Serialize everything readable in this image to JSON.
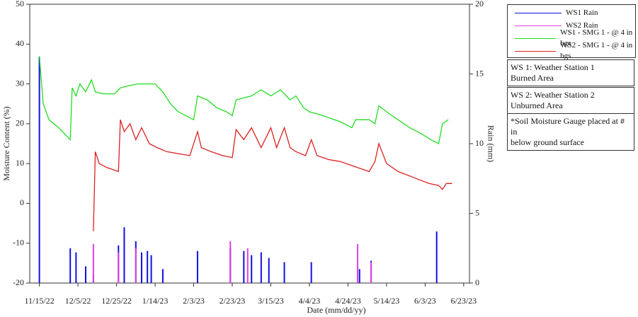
{
  "chart_data": {
    "type": "line",
    "x_label": "Date (mm/dd/yy)",
    "y_label": "Moisture Content (%)",
    "y2_label": "Rain (mm)",
    "xlim": [
      "11/10/22",
      "6/26/23"
    ],
    "xticks": [
      "11/15/22",
      "12/5/22",
      "12/25/22",
      "1/14/23",
      "2/3/23",
      "2/23/23",
      "3/15/23",
      "4/4/23",
      "4/24/23",
      "5/14/23",
      "6/3/23",
      "6/23/23"
    ],
    "ylim": [
      -20,
      50
    ],
    "yticks": [
      -20,
      -10,
      0,
      10,
      20,
      30,
      40,
      50
    ],
    "y2lim": [
      0,
      20
    ],
    "y2ticks": [
      0,
      5,
      10,
      15,
      20
    ],
    "series": [
      {
        "name": "WS1 Rain",
        "color": "#1010e0",
        "axis": "y2",
        "kind": "bar",
        "x": [
          "11/15/22",
          "12/1/22",
          "12/4/22",
          "12/9/22",
          "12/13/22",
          "12/26/22",
          "12/29/22",
          "1/4/23",
          "1/7/23",
          "1/10/23",
          "1/12/23",
          "1/18/23",
          "2/5/23",
          "2/22/23",
          "3/1/23",
          "3/5/23",
          "3/10/23",
          "3/14/23",
          "3/22/23",
          "4/5/23",
          "4/30/23",
          "5/6/23",
          "6/9/23"
        ],
        "values": [
          16.2,
          2.5,
          2.2,
          1.2,
          0.6,
          2.7,
          4,
          3,
          2.2,
          2.3,
          2,
          1,
          2.3,
          2.5,
          2.3,
          2,
          2.2,
          1.8,
          1.5,
          1.5,
          1,
          1.6,
          3.7
        ]
      },
      {
        "name": "WS2 Rain",
        "color": "#e040e0",
        "axis": "y2",
        "kind": "bar",
        "x": [
          "12/13/22",
          "12/26/22",
          "1/4/23",
          "2/22/23",
          "3/3/23",
          "4/29/23",
          "5/6/23"
        ],
        "values": [
          2.8,
          2.2,
          2.5,
          3,
          2.5,
          2.8,
          1.5
        ]
      },
      {
        "name": "WS1 - SMG 1 - @ 4 in bgs",
        "color": "#22dd22",
        "kind": "line",
        "x": [
          "11/15/22",
          "11/17/22",
          "11/20/22",
          "11/25/22",
          "11/30/22",
          "12/1/22",
          "12/2/22",
          "12/4/22",
          "12/6/22",
          "12/9/22",
          "12/12/22",
          "12/14/22",
          "12/18/22",
          "12/24/22",
          "12/27/22",
          "12/31/22",
          "1/5/23",
          "1/10/23",
          "1/14/23",
          "1/18/23",
          "1/22/23",
          "1/26/23",
          "1/30/23",
          "2/3/23",
          "2/5/23",
          "2/10/23",
          "2/15/23",
          "2/20/23",
          "2/23/23",
          "2/25/23",
          "3/1/23",
          "3/5/23",
          "3/10/23",
          "3/15/23",
          "3/20/23",
          "3/25/23",
          "3/28/23",
          "4/1/23",
          "4/4/23",
          "4/8/23",
          "4/14/23",
          "4/20/23",
          "4/26/23",
          "4/28/23",
          "5/5/23",
          "5/8/23",
          "5/10/23",
          "5/14/23",
          "5/20/23",
          "5/26/23",
          "6/1/23",
          "6/6/23",
          "6/10/23",
          "6/12/23",
          "6/15/23"
        ],
        "values": [
          37,
          25,
          21,
          19,
          16.5,
          16,
          29,
          27,
          30,
          28,
          31,
          28,
          27.5,
          27.5,
          29,
          29.5,
          30,
          30,
          30,
          28,
          25,
          23,
          22,
          21,
          27,
          26,
          24,
          23,
          22,
          26,
          26.5,
          27,
          28.5,
          27,
          28.5,
          26,
          27,
          24,
          23,
          22.5,
          21.5,
          20.5,
          19,
          21,
          21,
          20,
          24.5,
          23,
          21,
          19,
          17.5,
          16,
          15,
          20,
          21
        ]
      },
      {
        "name": "WS2 - SMG 1 - @ 4 in bgs",
        "color": "#dd2020",
        "kind": "line",
        "x": [
          "12/13/22",
          "12/14/22",
          "12/16/22",
          "12/20/22",
          "12/26/22",
          "12/27/22",
          "12/29/22",
          "1/1/23",
          "1/4/23",
          "1/7/23",
          "1/11/23",
          "1/15/23",
          "1/20/23",
          "1/26/23",
          "2/1/23",
          "2/5/23",
          "2/7/23",
          "2/12/23",
          "2/18/23",
          "2/23/23",
          "2/25/23",
          "3/1/23",
          "3/5/23",
          "3/10/23",
          "3/15/23",
          "3/18/23",
          "3/22/23",
          "3/25/23",
          "3/28/23",
          "4/2/23",
          "4/5/23",
          "4/8/23",
          "4/14/23",
          "4/20/23",
          "4/26/23",
          "5/2/23",
          "5/5/23",
          "5/8/23",
          "5/10/23",
          "5/14/23",
          "5/20/23",
          "5/28/23",
          "6/5/23",
          "6/10/23",
          "6/12/23",
          "6/14/23",
          "6/17/23"
        ],
        "values": [
          -7,
          13,
          10,
          9,
          8,
          21,
          18,
          20,
          16,
          19,
          15,
          14,
          13,
          12.5,
          12,
          18,
          14,
          13,
          12,
          11.5,
          18.5,
          16,
          19,
          14,
          19,
          14,
          19,
          14,
          13,
          12,
          16,
          12,
          11,
          10.5,
          9.5,
          8.5,
          8,
          10.5,
          15,
          10,
          8,
          6.5,
          5,
          4.5,
          3.5,
          5,
          5
        ]
      }
    ],
    "notes": [
      [
        "WS 1: Weather Station 1",
        "Burned Area"
      ],
      [
        "WS 2: Weather Station 2",
        "Unburned Area"
      ],
      [
        "*Soil Moisture Gauge placed at # in",
        "below ground surface"
      ]
    ]
  }
}
